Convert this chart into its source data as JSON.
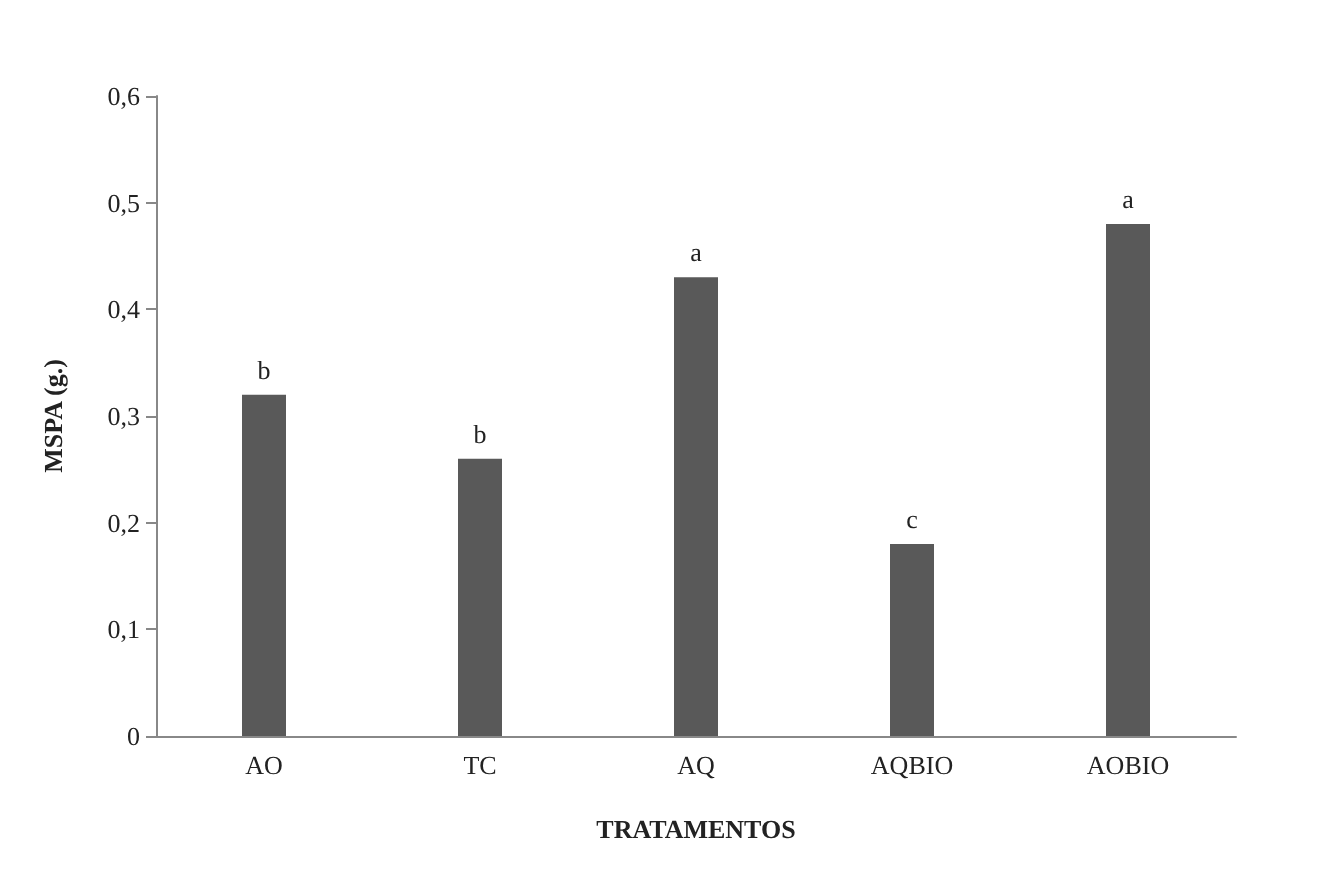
{
  "chart_data": {
    "type": "bar",
    "xlabel": "TRATAMENTOS",
    "ylabel": "MSPA (g.)",
    "categories": [
      "AO",
      "TC",
      "AQ",
      "AQBIO",
      "AOBIO"
    ],
    "values": [
      0.32,
      0.26,
      0.43,
      0.18,
      0.48
    ],
    "value_labels": [
      "b",
      "b",
      "a",
      "c",
      "a"
    ],
    "color": "#595959",
    "ylim": [
      0,
      0.6
    ],
    "yticks": [
      {
        "value": 0,
        "label": "0"
      },
      {
        "value": 0.1,
        "label": "0,1"
      },
      {
        "value": 0.2,
        "label": "0,2"
      },
      {
        "value": 0.3,
        "label": "0,3"
      },
      {
        "value": 0.4,
        "label": "0,4"
      },
      {
        "value": 0.5,
        "label": "0,5"
      },
      {
        "value": 0.6,
        "label": "0,6"
      }
    ],
    "grid": false
  }
}
